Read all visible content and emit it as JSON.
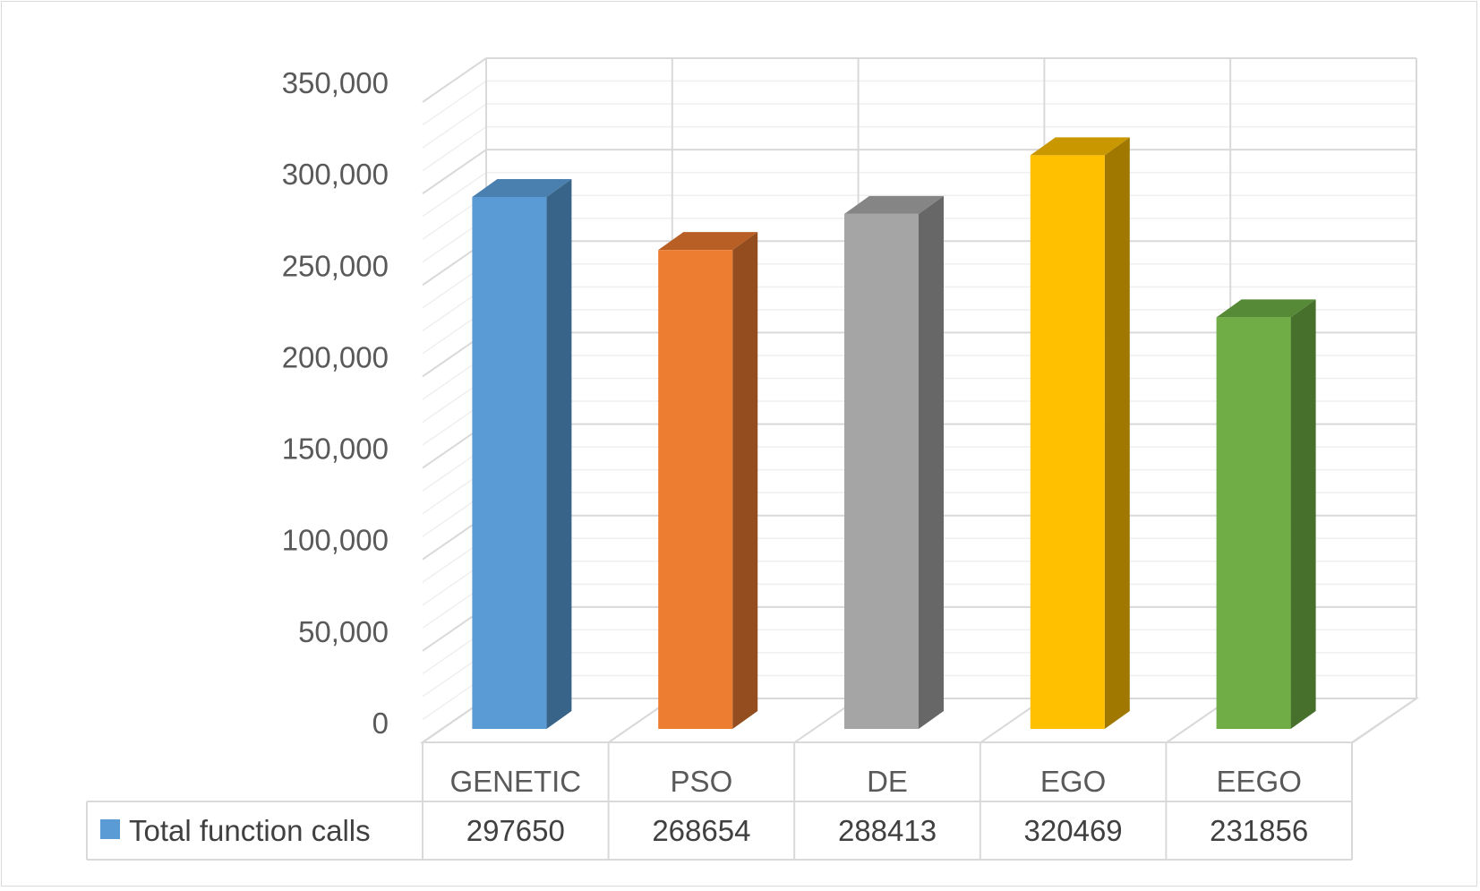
{
  "chart_data": {
    "type": "bar",
    "title": "",
    "xlabel": "",
    "ylabel": "",
    "ylim": [
      0,
      350000
    ],
    "y_ticks": [
      "0",
      "50,000",
      "100,000",
      "150,000",
      "200,000",
      "250,000",
      "300,000",
      "350,000"
    ],
    "y_tick_values": [
      0,
      50000,
      100000,
      150000,
      200000,
      250000,
      300000,
      350000
    ],
    "categories": [
      "GENETIC",
      "PSO",
      "DE",
      "EGO",
      "EEGO"
    ],
    "series": [
      {
        "name": "Total function calls",
        "values": [
          297650,
          268654,
          288413,
          320469,
          231856
        ],
        "value_labels": [
          "297650",
          "268654",
          "288413",
          "320469",
          "231856"
        ]
      }
    ],
    "bar_colors": {
      "front": [
        "#5b9bd5",
        "#ed7d31",
        "#a5a5a5",
        "#ffc000",
        "#70ad47"
      ],
      "side": [
        "#386489",
        "#934d1e",
        "#676767",
        "#a07800",
        "#46702c"
      ],
      "top": [
        "#4a80b0",
        "#b85f25",
        "#858585",
        "#c99700",
        "#568a37"
      ]
    },
    "legend": {
      "position": "bottom-data-table",
      "swatch_color": "#5b9bd5"
    },
    "grid": true,
    "style": "3d-column-with-data-table"
  }
}
